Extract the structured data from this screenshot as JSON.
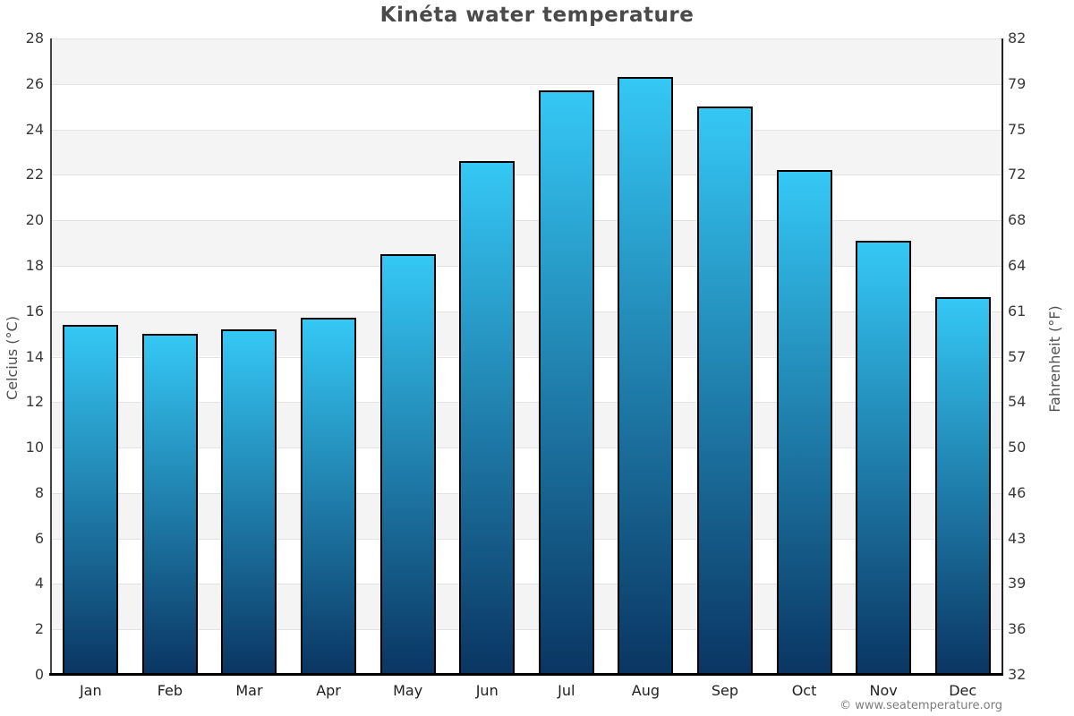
{
  "page": {
    "title": "Kinéta water temperature",
    "copyright": "© www.seatemperature.org"
  },
  "chart_data": {
    "type": "bar",
    "title": "Kinéta water temperature",
    "categories": [
      "Jan",
      "Feb",
      "Mar",
      "Apr",
      "May",
      "Jun",
      "Jul",
      "Aug",
      "Sep",
      "Oct",
      "Nov",
      "Dec"
    ],
    "values": [
      15.4,
      15.0,
      15.2,
      15.7,
      18.5,
      22.6,
      25.7,
      26.3,
      25.0,
      22.2,
      19.1,
      16.6
    ],
    "unit": "°C",
    "ylabel_left": "Celcius (°C)",
    "ylabel_right": "Fahrenheit (°F)",
    "ylim": [
      0,
      28
    ],
    "yticks_celsius": [
      0,
      2,
      4,
      6,
      8,
      10,
      12,
      14,
      16,
      18,
      20,
      22,
      24,
      26,
      28
    ],
    "yticks_fahrenheit": [
      32,
      36,
      39,
      43,
      46,
      50,
      54,
      57,
      61,
      64,
      68,
      72,
      75,
      79,
      82
    ],
    "legend": "none",
    "grid": "alternating-2-degree-bands-with-gridlines"
  },
  "colors": {
    "bar_gradient_top": "#35c8f5",
    "bar_gradient_bottom": "#0a3562",
    "bar_border": "#000000",
    "band_shade": "#f4f4f4",
    "band_light": "#ffffff",
    "gridline": "#e2e2e2",
    "axis_line": "#444444",
    "baseline": "#000000",
    "title_text": "#4a4a4a",
    "tick_text": "#3a3a3a",
    "month_text": "#1f1f1f",
    "copyright_text": "#7d7d7d"
  }
}
